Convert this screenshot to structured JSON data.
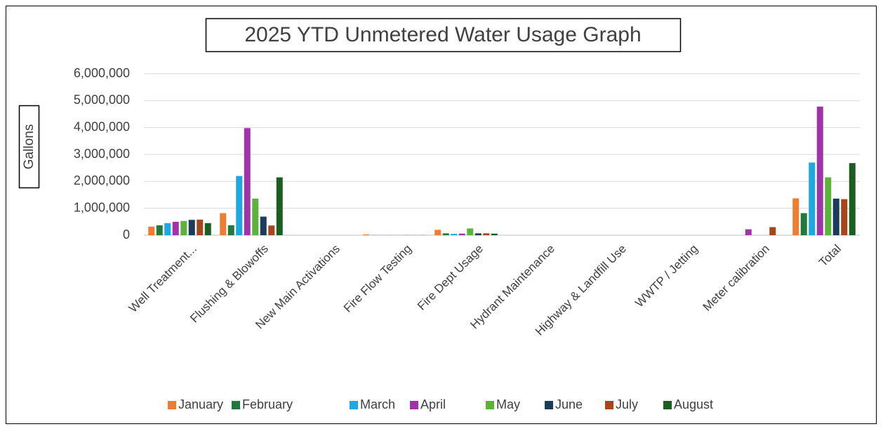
{
  "chart_data": {
    "type": "bar",
    "title": "2025 YTD Unmetered Water Usage Graph",
    "y_label": "Gallons",
    "categories": [
      "Well Treatment...",
      "Flushing & Blowoffs",
      "New Main Activations",
      "Fire Flow Testing",
      "Fire Dept Usage",
      "Hydrant Maintenance",
      "Highway & Landfill Use",
      "WWTP / Jetting",
      "Meter calibration",
      "Total"
    ],
    "series": [
      {
        "name": "January",
        "color": "#ED7D31",
        "values": [
          320000,
          820000,
          0,
          30000,
          200000,
          0,
          0,
          0,
          0,
          1370000
        ]
      },
      {
        "name": "February",
        "color": "#217A3C",
        "values": [
          370000,
          370000,
          0,
          5000,
          70000,
          0,
          0,
          0,
          0,
          820000
        ]
      },
      {
        "name": "March",
        "color": "#1EA7E0",
        "values": [
          450000,
          2200000,
          0,
          5000,
          50000,
          0,
          0,
          0,
          0,
          2700000
        ]
      },
      {
        "name": "April",
        "color": "#A033A8",
        "values": [
          500000,
          3980000,
          0,
          5000,
          60000,
          0,
          0,
          0,
          220000,
          4780000
        ]
      },
      {
        "name": "May",
        "color": "#5CB33C",
        "values": [
          530000,
          1360000,
          0,
          5000,
          250000,
          0,
          0,
          0,
          0,
          2150000
        ]
      },
      {
        "name": "June",
        "color": "#1C3A5A",
        "values": [
          570000,
          690000,
          0,
          5000,
          70000,
          0,
          0,
          0,
          0,
          1360000
        ]
      },
      {
        "name": "July",
        "color": "#A5461B",
        "values": [
          580000,
          360000,
          0,
          5000,
          70000,
          0,
          0,
          0,
          300000,
          1340000
        ]
      },
      {
        "name": "August",
        "color": "#1A5E20",
        "values": [
          450000,
          2150000,
          0,
          5000,
          60000,
          0,
          0,
          0,
          0,
          2680000
        ]
      }
    ],
    "ylim": [
      0,
      6000000
    ],
    "yticks": [
      0,
      {
        "value": 1000000,
        "label": "1,000,000"
      },
      {
        "value": 2000000,
        "label": "2,000,000"
      },
      {
        "value": 3000000,
        "label": "3,000,000"
      },
      {
        "value": 4000000,
        "label": "4,000,000"
      },
      {
        "value": 5000000,
        "label": "5,000,000"
      },
      {
        "value": 6000000,
        "label": "6,000,000"
      }
    ],
    "grid": true,
    "legend": "bottom"
  }
}
